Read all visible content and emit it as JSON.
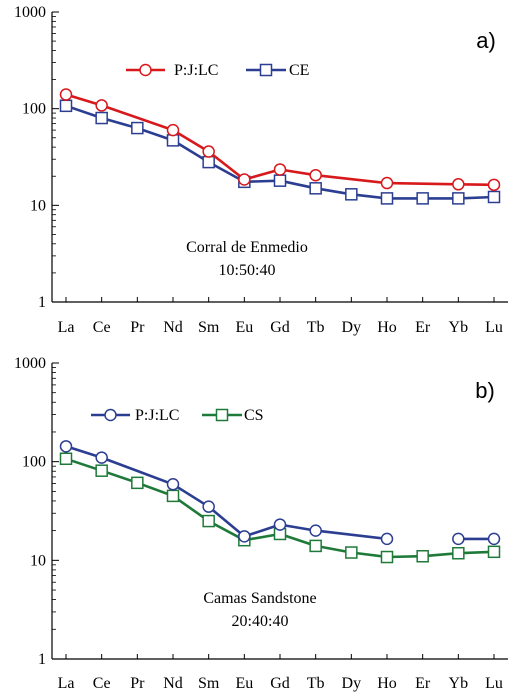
{
  "chart_data": [
    {
      "type": "line",
      "panel_label": "a)",
      "y_scale": "log",
      "ylim": [
        1,
        1000
      ],
      "y_ticks": [
        "1",
        "10",
        "100",
        "1000"
      ],
      "categories": [
        "La",
        "Ce",
        "Pr",
        "Nd",
        "Sm",
        "Eu",
        "Gd",
        "Tb",
        "Dy",
        "Ho",
        "Er",
        "Yb",
        "Lu"
      ],
      "annotation": [
        "Corral de Enmedio",
        "10:50:40"
      ],
      "legend_position": "top-center",
      "grid": false,
      "series": [
        {
          "name": "P:J:LC",
          "color": "#d7191c",
          "marker": "circle",
          "values": [
            140,
            108,
            null,
            60,
            36,
            18.5,
            23.5,
            20.5,
            null,
            17,
            null,
            16.5,
            16.3
          ],
          "marker_shown": [
            true,
            true,
            false,
            true,
            true,
            true,
            true,
            true,
            false,
            true,
            false,
            true,
            true
          ]
        },
        {
          "name": "CE",
          "color": "#2c3e91",
          "marker": "square",
          "values": [
            107,
            80,
            63,
            47,
            28,
            17.5,
            18,
            15,
            13,
            11.8,
            11.8,
            11.8,
            12.2
          ],
          "marker_shown": [
            true,
            true,
            true,
            true,
            true,
            true,
            true,
            true,
            true,
            true,
            true,
            true,
            true
          ]
        }
      ]
    },
    {
      "type": "line",
      "panel_label": "b)",
      "y_scale": "log",
      "ylim": [
        1,
        1000
      ],
      "y_ticks": [
        "1",
        "10",
        "100",
        "1000"
      ],
      "categories": [
        "La",
        "Ce",
        "Pr",
        "Nd",
        "Sm",
        "Eu",
        "Gd",
        "Tb",
        "Dy",
        "Ho",
        "Er",
        "Yb",
        "Lu"
      ],
      "annotation": [
        "Camas Sandstone",
        "20:40:40"
      ],
      "legend_position": "top-center",
      "grid": false,
      "series": [
        {
          "name": "P:J:LC",
          "color": "#2c3e91",
          "marker": "circle",
          "values": [
            143,
            110,
            null,
            59,
            35,
            17.5,
            23,
            20,
            null,
            16.5,
            null,
            16.5,
            16.5
          ],
          "marker_shown": [
            true,
            true,
            false,
            true,
            true,
            true,
            true,
            true,
            false,
            true,
            false,
            true,
            true
          ],
          "segments": [
            [
              0,
              9
            ],
            [
              11,
              12
            ]
          ]
        },
        {
          "name": "CS",
          "color": "#1f7a3a",
          "marker": "square",
          "values": [
            107,
            81,
            61,
            45,
            25,
            16,
            18.5,
            14,
            12,
            10.8,
            11,
            11.8,
            12.2
          ],
          "marker_shown": [
            true,
            true,
            true,
            true,
            true,
            true,
            true,
            true,
            true,
            true,
            true,
            true,
            true
          ]
        }
      ]
    }
  ]
}
